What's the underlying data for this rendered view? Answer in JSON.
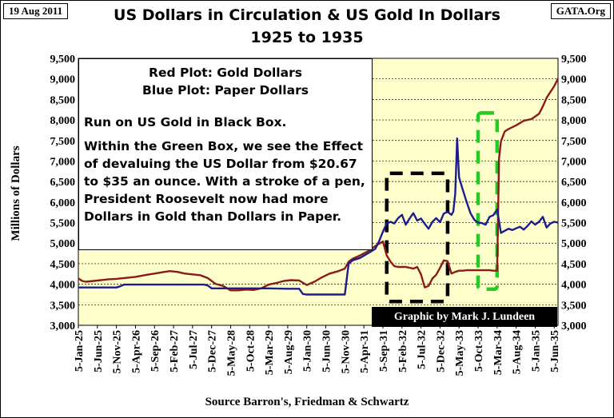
{
  "header": {
    "date_tag": "19 Aug 2011",
    "site_tag": "GATA.Org",
    "title_line1": "US Dollars in Circulation & US Gold In Dollars",
    "title_line2": "1925 to 1935"
  },
  "annotation": {
    "legend_red": "Red Plot: Gold Dollars",
    "legend_blue": "Blue Plot: Paper Dollars",
    "note1": "Run on US Gold in Black Box.",
    "note2": "Within the Green Box, we see the Effect of devaluing the US Dollar from $20.67 to $35 an ounce.  With a stroke of a pen, President Roosevelt now had more Dollars in Gold than Dollars in Paper.",
    "credit": "Graphic by Mark J. Lundeen",
    "source": "Source Barron's, Friedman & Schwartz"
  },
  "colors": {
    "plot_bg": "#FFFFCC",
    "gold": "#8B1A1A",
    "paper": "#1C1C8C",
    "black_box": "#000000",
    "green_box": "#22CC22"
  },
  "chart_data": {
    "type": "line",
    "title": "US Dollars in Circulation & US Gold In Dollars 1925 to 1935",
    "ylabel": "Millions of Dollars",
    "ylim": [
      3000,
      9500
    ],
    "xlim": [
      0,
      126
    ],
    "y_ticks": [
      "3,000",
      "3,500",
      "4,000",
      "4,500",
      "5,000",
      "5,500",
      "6,000",
      "6,500",
      "7,000",
      "7,500",
      "8,000",
      "8,500",
      "9,000",
      "9,500"
    ],
    "y_tick_values": [
      3000,
      3500,
      4000,
      4500,
      5000,
      5500,
      6000,
      6500,
      7000,
      7500,
      8000,
      8500,
      9000,
      9500
    ],
    "x_ticks": [
      "5-Jan-25",
      "5-Jun-25",
      "5-Nov-25",
      "5-Apr-26",
      "5-Sep-26",
      "5-Feb-27",
      "5-Jul-27",
      "5-Dec-27",
      "5-May-28",
      "5-Oct-28",
      "5-Mar-29",
      "5-Aug-29",
      "5-Jan-30",
      "5-Jun-30",
      "5-Nov-30",
      "5-Apr-31",
      "5-Sep-31",
      "5-Feb-32",
      "5-Jul-32",
      "5-Dec-32",
      "5-May-33",
      "5-Oct-33",
      "5-Mar-34",
      "5-Aug-34",
      "5-Jan-35",
      "5-Jun-35"
    ],
    "x_tick_values": [
      0,
      5,
      10,
      15,
      20,
      25,
      30,
      35,
      40,
      45,
      50,
      55,
      60,
      65,
      70,
      75,
      80,
      85,
      90,
      95,
      100,
      105,
      110,
      115,
      120,
      125
    ],
    "series": [
      {
        "name": "Gold Dollars",
        "color": "#8B1A1A",
        "x": [
          0,
          1,
          2,
          4,
          6,
          8,
          10,
          12,
          15,
          18,
          20,
          22,
          24,
          26,
          28,
          30,
          32,
          34,
          36,
          38,
          40,
          42,
          44,
          46,
          48,
          50,
          52,
          54,
          56,
          58,
          60,
          62,
          64,
          66,
          68,
          70,
          71,
          72,
          74,
          76,
          78,
          80,
          81,
          82,
          83,
          84,
          86,
          88,
          89,
          90,
          91,
          92,
          93,
          94,
          95,
          96,
          97,
          98,
          99,
          100,
          101,
          102,
          104,
          106,
          108,
          109,
          110,
          110.5,
          111,
          112,
          113,
          115,
          117,
          119,
          121,
          122,
          123,
          124,
          125,
          126
        ],
        "values": [
          4140,
          4080,
          4060,
          4080,
          4100,
          4120,
          4130,
          4150,
          4180,
          4230,
          4260,
          4290,
          4320,
          4300,
          4260,
          4240,
          4220,
          4150,
          4010,
          3960,
          3850,
          3850,
          3870,
          3860,
          3900,
          3990,
          4030,
          4080,
          4100,
          4090,
          3980,
          4060,
          4170,
          4260,
          4310,
          4380,
          4550,
          4620,
          4700,
          4800,
          4930,
          5040,
          4700,
          4550,
          4440,
          4420,
          4420,
          4380,
          4420,
          4240,
          3920,
          3960,
          4140,
          4230,
          4400,
          4580,
          4560,
          4260,
          4300,
          4330,
          4330,
          4340,
          4340,
          4340,
          4340,
          4330,
          4330,
          7060,
          7480,
          7720,
          7780,
          7870,
          7980,
          8020,
          8150,
          8330,
          8540,
          8680,
          8820,
          9010
        ]
      },
      {
        "name": "Paper Dollars",
        "color": "#1C1C8C",
        "x": [
          0,
          2,
          4,
          6,
          8,
          10,
          11,
          12,
          15,
          18,
          20,
          25,
          30,
          33,
          34,
          35,
          36,
          38,
          40,
          42,
          45,
          48,
          50,
          55,
          58,
          59,
          60,
          62,
          64,
          66,
          68,
          70,
          71,
          72,
          74,
          76,
          78,
          79,
          80,
          81,
          82,
          83,
          84,
          85,
          86,
          87,
          88,
          89,
          90,
          91,
          92,
          93,
          94,
          95,
          96,
          97,
          98,
          98.5,
          99,
          99.5,
          100,
          101,
          102,
          103,
          104,
          105,
          106,
          107,
          108,
          109,
          110,
          111,
          112,
          113,
          114,
          115,
          116,
          117,
          118,
          119,
          120,
          121,
          122,
          123,
          124,
          125,
          126
        ],
        "values": [
          3920,
          3920,
          3920,
          3920,
          3920,
          3920,
          3950,
          3990,
          3990,
          3990,
          3990,
          3990,
          3990,
          3990,
          3970,
          3900,
          3900,
          3900,
          3900,
          3900,
          3900,
          3900,
          3900,
          3890,
          3890,
          3760,
          3750,
          3750,
          3750,
          3750,
          3750,
          3750,
          4500,
          4580,
          4640,
          4750,
          4860,
          5050,
          5280,
          5480,
          5520,
          5480,
          5610,
          5690,
          5450,
          5600,
          5730,
          5550,
          5600,
          5470,
          5350,
          5520,
          5610,
          5510,
          5720,
          5760,
          5690,
          5770,
          6200,
          7550,
          6600,
          6290,
          6000,
          5730,
          5570,
          5500,
          5490,
          5450,
          5640,
          5680,
          5820,
          5250,
          5300,
          5350,
          5320,
          5360,
          5400,
          5330,
          5420,
          5530,
          5450,
          5520,
          5640,
          5380,
          5480,
          5520,
          5500
        ]
      }
    ],
    "annotation_boxes": [
      {
        "label": "Run on US Gold (black box)",
        "style": "dashed",
        "color": "#000000",
        "x_range": [
          81,
          97
        ],
        "y_range": [
          3580,
          6700
        ]
      },
      {
        "label": "Devaluation of the US Dollar (green box)",
        "style": "dashed",
        "color": "#22CC22",
        "x_range": [
          105,
          110
        ],
        "y_range": [
          3880,
          8170
        ]
      }
    ]
  }
}
